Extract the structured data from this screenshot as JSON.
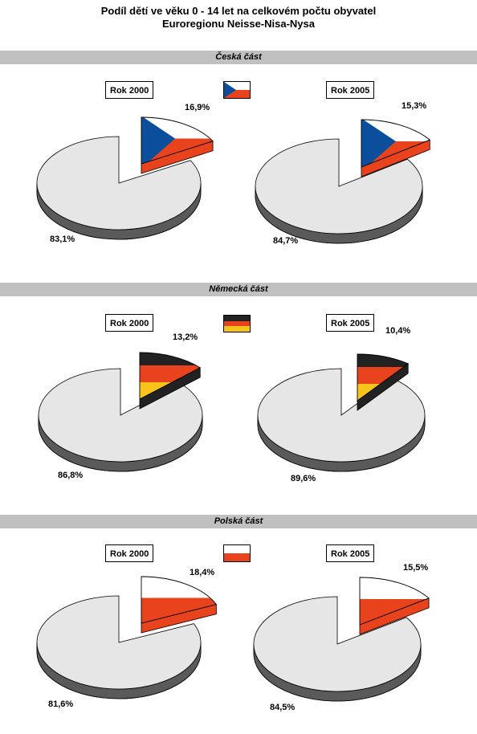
{
  "title_line1": "Podíl dětí ve věku 0 - 14 let na celkovém počtu obyvatel",
  "title_line2": "Euroregionu Neisse-Nisa-Nysa",
  "sections": [
    {
      "name": "Česká část",
      "flag": "flag-cz"
    },
    {
      "name": "Německá část",
      "flag": "flag-de"
    },
    {
      "name": "Polská část",
      "flag": "flag-pl"
    }
  ],
  "colors": {
    "adults": "#e6e6e6",
    "pie_side": "#5a5a5a",
    "cz_blue": "#0b4f9c",
    "cz_red": "#e8431c",
    "de_black": "#222222",
    "de_red": "#e8431c",
    "de_gold": "#f8c31b",
    "pl_white": "#ffffff",
    "pl_red": "#e8431c",
    "band": "#c0c0c0"
  },
  "chart_data": [
    {
      "type": "pie",
      "title": "Česká část",
      "year": "Rok 2000",
      "labels": [
        "16,9%",
        "83,1%"
      ],
      "values": [
        16.9,
        83.1
      ],
      "flag": "flag-cz"
    },
    {
      "type": "pie",
      "title": "Česká část",
      "year": "Rok 2005",
      "labels": [
        "15,3%",
        "84,7%"
      ],
      "values": [
        15.3,
        84.7
      ],
      "flag": "flag-cz"
    },
    {
      "type": "pie",
      "title": "Německá část",
      "year": "Rok 2000",
      "labels": [
        "13,2%",
        "86,8%"
      ],
      "values": [
        13.2,
        86.8
      ],
      "flag": "flag-de"
    },
    {
      "type": "pie",
      "title": "Německá část",
      "year": "Rok 2005",
      "labels": [
        "10,4%",
        "89,6%"
      ],
      "values": [
        10.4,
        89.6
      ],
      "flag": "flag-de"
    },
    {
      "type": "pie",
      "title": "Polská část",
      "year": "Rok 2000",
      "labels": [
        "18,4%",
        "81,6%"
      ],
      "values": [
        18.4,
        81.6
      ],
      "flag": "flag-pl"
    },
    {
      "type": "pie",
      "title": "Polská část",
      "year": "Rok 2005",
      "labels": [
        "15,5%",
        "84,5%"
      ],
      "values": [
        15.5,
        84.5
      ],
      "flag": "flag-pl"
    }
  ]
}
